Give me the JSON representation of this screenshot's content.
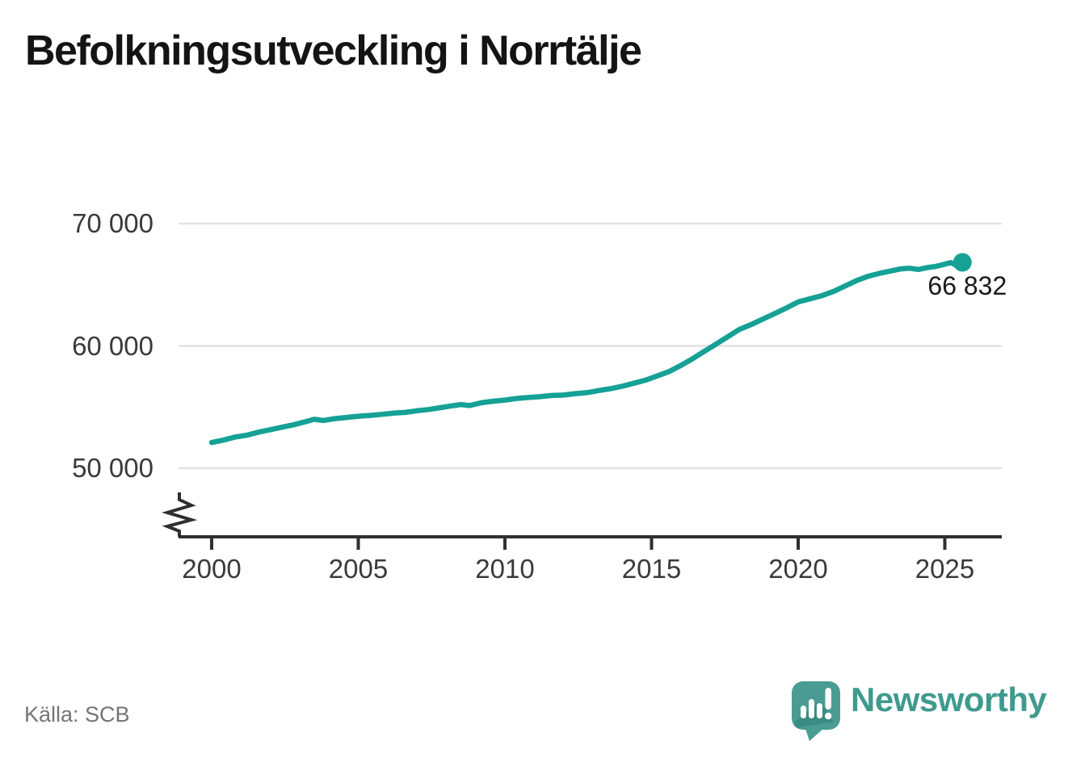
{
  "header": {
    "title": "Befolkningsutveckling i Norrtälje"
  },
  "footer": {
    "source_label": "Källa: SCB",
    "brand_name": "Newsworthy"
  },
  "chart_data": {
    "type": "line",
    "title": "Befolkningsutveckling i Norrtälje",
    "xlabel": "",
    "ylabel": "",
    "grid": "horizontal-only",
    "axis_break_bottom_left": true,
    "xlim": [
      1998.9,
      2027.0
    ],
    "ylim_visible": [
      50000,
      70000
    ],
    "series": [
      {
        "name": "Befolkning i Norrtälje",
        "color": "#15a195",
        "x": [
          2000.0,
          2000.4,
          2000.8,
          2001.2,
          2001.6,
          2002.0,
          2002.4,
          2002.8,
          2003.2,
          2003.5,
          2003.8,
          2004.2,
          2004.6,
          2005.0,
          2005.4,
          2005.8,
          2006.2,
          2006.6,
          2007.0,
          2007.4,
          2007.8,
          2008.2,
          2008.5,
          2008.8,
          2009.2,
          2009.6,
          2010.0,
          2010.4,
          2010.8,
          2011.2,
          2011.6,
          2012.0,
          2012.4,
          2012.8,
          2013.2,
          2013.6,
          2014.0,
          2014.4,
          2014.8,
          2015.2,
          2015.6,
          2016.0,
          2016.4,
          2016.8,
          2017.2,
          2017.6,
          2018.0,
          2018.4,
          2018.8,
          2019.2,
          2019.6,
          2020.0,
          2020.4,
          2020.8,
          2021.2,
          2021.6,
          2022.0,
          2022.4,
          2022.8,
          2023.2,
          2023.5,
          2023.8,
          2024.1,
          2024.4,
          2024.7,
          2025.0,
          2025.2,
          2025.35,
          2025.6
        ],
        "y": [
          52100,
          52300,
          52550,
          52700,
          52950,
          53150,
          53350,
          53550,
          53800,
          54000,
          53900,
          54050,
          54150,
          54250,
          54320,
          54400,
          54500,
          54560,
          54700,
          54800,
          54950,
          55100,
          55200,
          55120,
          55350,
          55480,
          55570,
          55700,
          55780,
          55850,
          55950,
          55980,
          56100,
          56180,
          56350,
          56500,
          56700,
          56950,
          57200,
          57550,
          57900,
          58400,
          58950,
          59550,
          60150,
          60750,
          61350,
          61750,
          62200,
          62650,
          63100,
          63600,
          63850,
          64100,
          64450,
          64900,
          65350,
          65700,
          65950,
          66150,
          66300,
          66350,
          66250,
          66400,
          66500,
          66680,
          66820,
          66640,
          66832
        ]
      }
    ],
    "end_point": {
      "x": 2025.6,
      "value": 66832,
      "label": "66 832"
    },
    "x_ticks": [
      {
        "value": 2000,
        "label": "2000"
      },
      {
        "value": 2005,
        "label": "2005"
      },
      {
        "value": 2010,
        "label": "2010"
      },
      {
        "value": 2015,
        "label": "2015"
      },
      {
        "value": 2020,
        "label": "2020"
      },
      {
        "value": 2025,
        "label": "2025"
      }
    ],
    "y_ticks": [
      {
        "value": 70000,
        "label": "70 000"
      },
      {
        "value": 60000,
        "label": "60 000"
      },
      {
        "value": 50000,
        "label": "50 000"
      }
    ],
    "colors": {
      "line": "#15a195",
      "grid": "#e2e2e2",
      "axis": "#2f2f2f",
      "tick_label": "#3a3a3a",
      "value_label": "#1a1a1a",
      "logo_bubble": "#4a9c92",
      "logo_shadow": "#2e7d72",
      "brand_text": "#3f9a8e"
    }
  }
}
